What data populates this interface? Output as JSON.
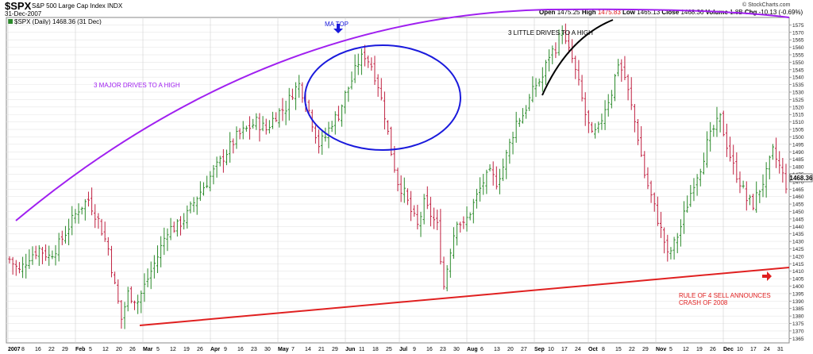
{
  "header": {
    "symbol": "$SPX",
    "name": "S&P 500 Large Cap Index",
    "exchange": "INDX",
    "date": "31-Dec-2007",
    "legend": "$SPX (Daily) 1468.36 (31 Dec)",
    "brand": "© StockCharts.com",
    "quote": {
      "open_label": "Open",
      "open": "1475.25",
      "high_label": "High",
      "high": "1475.83",
      "low_label": "Low",
      "low": "1465.13",
      "close_label": "Close",
      "close": "1468.36",
      "volume_label": "Volume",
      "volume": "1.8B",
      "chg_label": "Chg",
      "chg": "-10.13 (-0.69%)"
    }
  },
  "chart_data": {
    "type": "ohlc",
    "title": "$SPX (Daily) 1468.36 (31 Dec)",
    "y_ticks": [
      1365,
      1370,
      1375,
      1380,
      1385,
      1390,
      1395,
      1400,
      1405,
      1410,
      1415,
      1420,
      1425,
      1430,
      1435,
      1440,
      1445,
      1450,
      1455,
      1460,
      1465,
      1470,
      1475,
      1480,
      1485,
      1490,
      1495,
      1500,
      1505,
      1510,
      1515,
      1520,
      1525,
      1530,
      1535,
      1540,
      1545,
      1550,
      1555,
      1560,
      1565,
      1570,
      1575
    ],
    "ylim": [
      1362,
      1580
    ],
    "last_value_label": "1468.36",
    "x_ticks": [
      "2007",
      "8",
      "16",
      "22",
      "29",
      "Feb",
      "5",
      "12",
      "20",
      "26",
      "Mar",
      "5",
      "12",
      "19",
      "26",
      "Apr",
      "9",
      "16",
      "23",
      "30",
      "May",
      "7",
      "14",
      "21",
      "29",
      "Jun",
      "11",
      "18",
      "25",
      "Jul",
      "9",
      "16",
      "23",
      "30",
      "Aug",
      "6",
      "13",
      "20",
      "27",
      "Sep",
      "10",
      "17",
      "24",
      "Oct",
      "8",
      "15",
      "22",
      "29",
      "Nov",
      "5",
      "12",
      "19",
      "26",
      "Dec",
      "10",
      "17",
      "24",
      "31"
    ],
    "x_tick_bold": [
      "2007",
      "Feb",
      "Mar",
      "Apr",
      "May",
      "Jun",
      "Jul",
      "Aug",
      "Sep",
      "Oct",
      "Nov",
      "Dec"
    ],
    "price_path": [
      [
        0,
        1418
      ],
      [
        3,
        1410
      ],
      [
        6,
        1420
      ],
      [
        9,
        1425
      ],
      [
        12,
        1420
      ],
      [
        15,
        1428
      ],
      [
        18,
        1440
      ],
      [
        21,
        1452
      ],
      [
        24,
        1458
      ],
      [
        27,
        1444
      ],
      [
        30,
        1425
      ],
      [
        32,
        1400
      ],
      [
        34,
        1378
      ],
      [
        36,
        1395
      ],
      [
        39,
        1390
      ],
      [
        42,
        1405
      ],
      [
        45,
        1420
      ],
      [
        48,
        1438
      ],
      [
        51,
        1440
      ],
      [
        54,
        1448
      ],
      [
        57,
        1460
      ],
      [
        60,
        1470
      ],
      [
        63,
        1480
      ],
      [
        66,
        1490
      ],
      [
        69,
        1500
      ],
      [
        72,
        1505
      ],
      [
        75,
        1510
      ],
      [
        78,
        1505
      ],
      [
        81,
        1515
      ],
      [
        84,
        1520
      ],
      [
        86,
        1530
      ],
      [
        88,
        1535
      ],
      [
        90,
        1525
      ],
      [
        92,
        1510
      ],
      [
        94,
        1495
      ],
      [
        96,
        1500
      ],
      [
        98,
        1510
      ],
      [
        100,
        1515
      ],
      [
        102,
        1528
      ],
      [
        104,
        1538
      ],
      [
        106,
        1550
      ],
      [
        108,
        1555
      ],
      [
        110,
        1548
      ],
      [
        112,
        1535
      ],
      [
        114,
        1515
      ],
      [
        116,
        1490
      ],
      [
        118,
        1470
      ],
      [
        120,
        1462
      ],
      [
        122,
        1450
      ],
      [
        124,
        1440
      ],
      [
        126,
        1455
      ],
      [
        128,
        1448
      ],
      [
        130,
        1440
      ],
      [
        131,
        1420
      ],
      [
        132,
        1400
      ],
      [
        134,
        1425
      ],
      [
        136,
        1445
      ],
      [
        138,
        1440
      ],
      [
        140,
        1450
      ],
      [
        142,
        1460
      ],
      [
        144,
        1470
      ],
      [
        146,
        1475
      ],
      [
        148,
        1470
      ],
      [
        150,
        1480
      ],
      [
        152,
        1495
      ],
      [
        154,
        1510
      ],
      [
        156,
        1515
      ],
      [
        158,
        1525
      ],
      [
        160,
        1535
      ],
      [
        162,
        1540
      ],
      [
        164,
        1555
      ],
      [
        166,
        1560
      ],
      [
        168,
        1572
      ],
      [
        169,
        1562
      ],
      [
        171,
        1552
      ],
      [
        173,
        1535
      ],
      [
        175,
        1515
      ],
      [
        177,
        1500
      ],
      [
        179,
        1505
      ],
      [
        181,
        1520
      ],
      [
        183,
        1530
      ],
      [
        185,
        1550
      ],
      [
        187,
        1540
      ],
      [
        189,
        1520
      ],
      [
        191,
        1500
      ],
      [
        193,
        1475
      ],
      [
        195,
        1460
      ],
      [
        197,
        1445
      ],
      [
        199,
        1430
      ],
      [
        200,
        1420
      ],
      [
        202,
        1428
      ],
      [
        204,
        1440
      ],
      [
        206,
        1455
      ],
      [
        208,
        1470
      ],
      [
        210,
        1480
      ],
      [
        212,
        1495
      ],
      [
        214,
        1505
      ],
      [
        216,
        1512
      ],
      [
        218,
        1495
      ],
      [
        220,
        1480
      ],
      [
        222,
        1470
      ],
      [
        224,
        1458
      ],
      [
        226,
        1455
      ],
      [
        228,
        1465
      ],
      [
        230,
        1475
      ],
      [
        232,
        1490
      ],
      [
        234,
        1480
      ],
      [
        236,
        1468
      ]
    ],
    "annotations": [
      {
        "text": "3 MAJOR DRIVES TO A HIGH",
        "color": "#a020f0"
      },
      {
        "text": "MA TOP",
        "color": "#1a1adc"
      },
      {
        "text": "3 LITTLE DRIVES TO A HIGH",
        "color": "#000000"
      },
      {
        "text": "RULE OF 4 SELL ANNOUNCES",
        "color": "#e02020"
      },
      {
        "text": "CRASH OF 2008",
        "color": "#e02020"
      }
    ],
    "colors": {
      "up": "#2a8a2a",
      "down": "#c02040",
      "arc": "#a020f0",
      "ellipse": "#1a1adc",
      "trendline": "#e02020",
      "small_arc": "#000000",
      "grid": "#e6e6e6"
    },
    "grid": true
  }
}
